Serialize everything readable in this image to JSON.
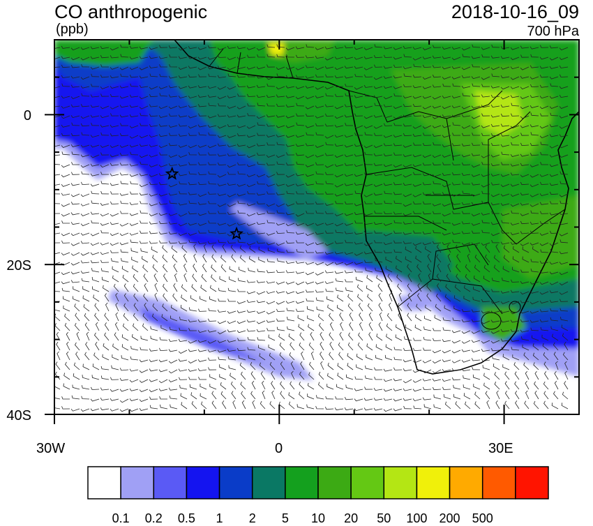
{
  "title": "CO anthropogenic",
  "units": "(ppb)",
  "datetime": "2018-10-16_09",
  "level": "700 hPa",
  "lat_labels": [
    "0",
    "20S",
    "40S"
  ],
  "lon_labels": [
    "30W",
    "0",
    "30E"
  ],
  "colorbar": {
    "colors": [
      "#ffffff",
      "#a0a0f5",
      "#5a5af5",
      "#1414f0",
      "#0a3cc8",
      "#0a7864",
      "#14a01e",
      "#3caa14",
      "#64c814",
      "#b4e614",
      "#f0f00a",
      "#ffaa00",
      "#ff5a00",
      "#ff1400"
    ],
    "labels": [
      "0.1",
      "0.2",
      "0.5",
      "1",
      "2",
      "5",
      "10",
      "20",
      "50",
      "100",
      "200",
      "500"
    ]
  },
  "markers": [
    {
      "name": "star-marker",
      "lon": -14.3,
      "lat": -7.9
    },
    {
      "name": "star-marker",
      "lon": -5.7,
      "lat": -15.9
    }
  ],
  "map_extent": {
    "lon_min": -30,
    "lon_max": 40,
    "lat_min": -40,
    "lat_max": 10
  }
}
